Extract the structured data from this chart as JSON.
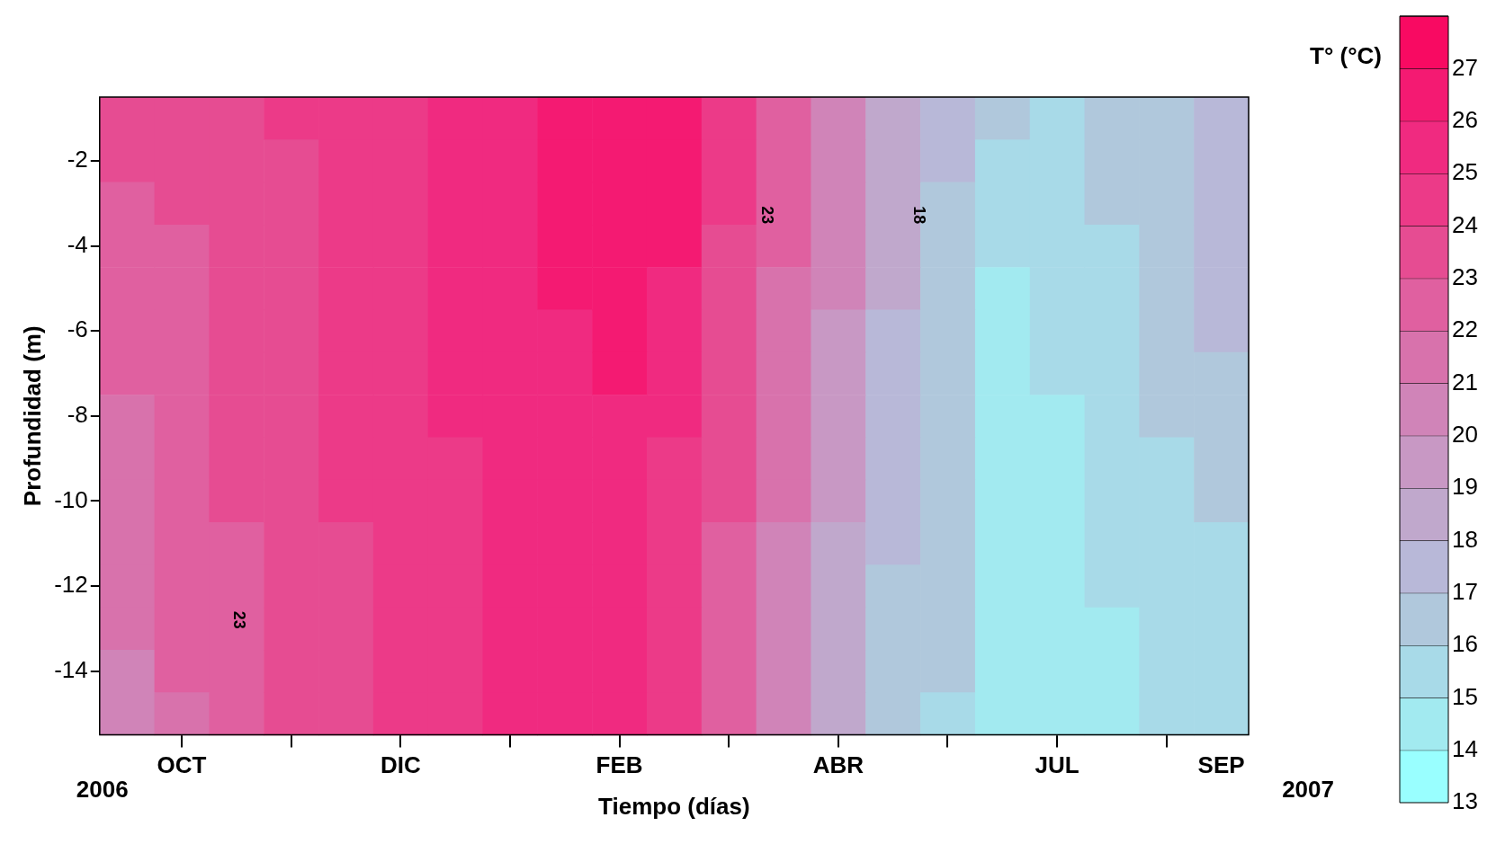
{
  "chart_data": {
    "type": "heatmap",
    "xlabel": "Tiempo (días)",
    "ylabel": "Profundidad (m)",
    "clabel": "T° (°C)",
    "categories": [
      null,
      "OCT",
      null,
      null,
      null,
      "DIC",
      null,
      null,
      null,
      "FEB",
      null,
      null,
      null,
      "ABR",
      null,
      null,
      null,
      "JUL",
      null,
      null,
      "SEP"
    ],
    "y_categories": [
      null,
      "-2",
      null,
      "-4",
      null,
      "-6",
      null,
      "-8",
      null,
      "-10",
      null,
      "-12",
      null,
      "-14",
      null
    ],
    "cells": [
      [
        23.5,
        23.5,
        23.5,
        24.5,
        24.5,
        24.5,
        25.5,
        25.5,
        26.5,
        26.5,
        26.5,
        24.5,
        22.5,
        20.5,
        18.5,
        17.5,
        16.5,
        15.5,
        16.5,
        16.5,
        17.5
      ],
      [
        23.5,
        23.5,
        23.5,
        23.5,
        24.5,
        24.5,
        25.5,
        25.5,
        26.5,
        26.5,
        26.5,
        24.5,
        22.5,
        20.5,
        18.5,
        17.5,
        15.5,
        15.5,
        16.5,
        16.5,
        17.5
      ],
      [
        22.5,
        23.5,
        23.5,
        23.5,
        24.5,
        24.5,
        25.5,
        25.5,
        26.5,
        26.5,
        26.5,
        24.5,
        22.5,
        20.5,
        18.5,
        16.5,
        15.5,
        15.5,
        16.5,
        16.5,
        17.5
      ],
      [
        22.5,
        22.5,
        23.5,
        23.5,
        24.5,
        24.5,
        25.5,
        25.5,
        26.5,
        26.5,
        26.5,
        23.5,
        22.5,
        20.5,
        18.5,
        16.5,
        15.5,
        15.5,
        15.5,
        16.5,
        17.5
      ],
      [
        22.5,
        22.5,
        23.5,
        23.5,
        24.5,
        24.5,
        25.5,
        25.5,
        26.5,
        26.5,
        25.5,
        23.5,
        21.5,
        20.5,
        18.5,
        16.5,
        14.5,
        15.5,
        15.5,
        16.5,
        17.5
      ],
      [
        22.5,
        22.5,
        23.5,
        23.5,
        24.5,
        24.5,
        25.5,
        25.5,
        25.5,
        26.5,
        25.5,
        23.5,
        21.5,
        19.5,
        17.5,
        16.5,
        14.5,
        15.5,
        15.5,
        16.5,
        17.5
      ],
      [
        22.5,
        22.5,
        23.5,
        23.5,
        24.5,
        24.5,
        25.5,
        25.5,
        25.5,
        26.5,
        25.5,
        23.5,
        21.5,
        19.5,
        17.5,
        16.5,
        14.5,
        15.5,
        15.5,
        16.5,
        16.5
      ],
      [
        21.5,
        22.5,
        23.5,
        23.5,
        24.5,
        24.5,
        25.5,
        25.5,
        25.5,
        25.5,
        25.5,
        23.5,
        21.5,
        19.5,
        17.5,
        16.5,
        14.5,
        14.5,
        15.5,
        16.5,
        16.5
      ],
      [
        21.5,
        22.5,
        23.5,
        23.5,
        24.5,
        24.5,
        24.5,
        25.5,
        25.5,
        25.5,
        24.5,
        23.5,
        21.5,
        19.5,
        17.5,
        16.5,
        14.5,
        14.5,
        15.5,
        15.5,
        16.5
      ],
      [
        21.5,
        22.5,
        23.5,
        23.5,
        24.5,
        24.5,
        24.5,
        25.5,
        25.5,
        25.5,
        24.5,
        23.5,
        21.5,
        19.5,
        17.5,
        16.5,
        14.5,
        14.5,
        15.5,
        15.5,
        16.5
      ],
      [
        21.5,
        22.5,
        22.5,
        23.5,
        23.5,
        24.5,
        24.5,
        25.5,
        25.5,
        25.5,
        24.5,
        22.5,
        20.5,
        18.5,
        17.5,
        16.5,
        14.5,
        14.5,
        15.5,
        15.5,
        15.5
      ],
      [
        21.5,
        22.5,
        22.5,
        23.5,
        23.5,
        24.5,
        24.5,
        25.5,
        25.5,
        25.5,
        24.5,
        22.5,
        20.5,
        18.5,
        16.5,
        16.5,
        14.5,
        14.5,
        15.5,
        15.5,
        15.5
      ],
      [
        21.5,
        22.5,
        22.5,
        23.5,
        23.5,
        24.5,
        24.5,
        25.5,
        25.5,
        25.5,
        24.5,
        22.5,
        20.5,
        18.5,
        16.5,
        16.5,
        14.5,
        14.5,
        14.5,
        15.5,
        15.5
      ],
      [
        20.5,
        22.5,
        22.5,
        23.5,
        23.5,
        24.5,
        24.5,
        25.5,
        25.5,
        25.5,
        24.5,
        22.5,
        20.5,
        18.5,
        16.5,
        16.5,
        14.5,
        14.5,
        14.5,
        15.5,
        15.5
      ],
      [
        20.5,
        21.5,
        22.5,
        23.5,
        23.5,
        24.5,
        24.5,
        25.5,
        25.5,
        25.5,
        24.5,
        22.5,
        20.5,
        18.5,
        16.5,
        15.5,
        14.5,
        14.5,
        14.5,
        15.5,
        15.5
      ]
    ],
    "clim": [
      13,
      28
    ],
    "cticks": [
      13,
      14,
      15,
      16,
      17,
      18,
      19,
      20,
      21,
      22,
      23,
      24,
      25,
      26,
      27
    ],
    "colors": [
      "#99ffff",
      "#a2eaf0",
      "#a8dae8",
      "#b0c8dc",
      "#b8b8d8",
      "#c0a8cc",
      "#c898c4",
      "#d084b8",
      "#d872ac",
      "#e060a0",
      "#e64c92",
      "#ec3a88",
      "#f02a80",
      "#f41a72",
      "#f80a62"
    ],
    "annotations": [
      "2006",
      "2007",
      "23",
      "23",
      "18"
    ]
  }
}
